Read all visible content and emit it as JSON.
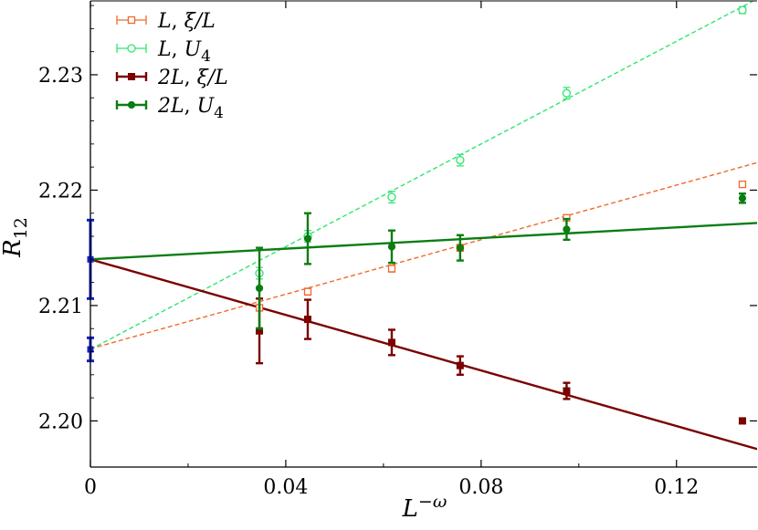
{
  "chart_data": {
    "type": "scatter",
    "title": "",
    "xlabel": {
      "base": "L",
      "sup": "−ω"
    },
    "ylabel": {
      "base": "R",
      "sub": "12"
    },
    "xlim": [
      0,
      0.1365
    ],
    "ylim": [
      2.196,
      2.2364
    ],
    "xticks": [
      0,
      0.04,
      0.08,
      0.12
    ],
    "xtick_labels": [
      "0",
      "0.04",
      "0.08",
      "0.12"
    ],
    "yticks": [
      2.2,
      2.21,
      2.22,
      2.23
    ],
    "ytick_labels": [
      "2.20",
      "2.21",
      "2.22",
      "2.23"
    ],
    "legend_position": "top-left",
    "series": [
      {
        "id": "L_xi",
        "legend_label": {
          "a": "L",
          "b": ", ξ/L",
          "sub": ""
        },
        "color": "#f06a2a",
        "marker": "square-open",
        "line_style": "dashed",
        "fit": {
          "intercept": 2.20625,
          "slope": 0.1182
        },
        "points": [
          {
            "x": 0.0346,
            "y": 2.2098,
            "err": 0.0002
          },
          {
            "x": 0.0445,
            "y": 2.2112,
            "err": 0.0003
          },
          {
            "x": 0.0617,
            "y": 2.2132,
            "err": 0.0003
          },
          {
            "x": 0.0757,
            "y": 2.215,
            "err": 0.0003
          },
          {
            "x": 0.0975,
            "y": 2.2176,
            "err": 0.0002
          },
          {
            "x": 0.1335,
            "y": 2.2205,
            "err": 0.0002
          }
        ]
      },
      {
        "id": "L_U4",
        "legend_label": {
          "a": "L",
          "b": ", U",
          "sub": "4"
        },
        "color": "#2ee66e",
        "marker": "circle-open",
        "line_style": "dashed",
        "fit": {
          "intercept": 2.2062,
          "slope": 0.2225
        },
        "points": [
          {
            "x": 0.0346,
            "y": 2.2128,
            "err": 0.0005
          },
          {
            "x": 0.0445,
            "y": 2.216,
            "err": 0.0005
          },
          {
            "x": 0.0617,
            "y": 2.2194,
            "err": 0.0005
          },
          {
            "x": 0.0757,
            "y": 2.2226,
            "err": 0.0005
          },
          {
            "x": 0.0975,
            "y": 2.2284,
            "err": 0.0005
          },
          {
            "x": 0.1335,
            "y": 2.2356,
            "err": 0.0003
          }
        ]
      },
      {
        "id": "2L_xi",
        "legend_label": {
          "a": "2L",
          "b": ", ξ/L",
          "sub": ""
        },
        "color": "#7b0000",
        "marker": "square-filled",
        "line_style": "solid",
        "fit": {
          "intercept": 2.214,
          "slope": -0.1204
        },
        "points": [
          {
            "x": 0.0346,
            "y": 2.2078,
            "err": 0.0028
          },
          {
            "x": 0.0445,
            "y": 2.2088,
            "err": 0.0017
          },
          {
            "x": 0.0617,
            "y": 2.2068,
            "err": 0.0011
          },
          {
            "x": 0.0757,
            "y": 2.2048,
            "err": 0.0008
          },
          {
            "x": 0.0975,
            "y": 2.2026,
            "err": 0.0007
          },
          {
            "x": 0.1335,
            "y": 2.2,
            "err": 0.0002
          }
        ]
      },
      {
        "id": "2L_U4",
        "legend_label": {
          "a": "2L",
          "b": ", U",
          "sub": "4"
        },
        "color": "#0b7d12",
        "marker": "circle-filled",
        "line_style": "solid",
        "fit": {
          "intercept": 2.214,
          "slope": 0.0231
        },
        "points": [
          {
            "x": 0.0346,
            "y": 2.2115,
            "err": 0.0035
          },
          {
            "x": 0.0445,
            "y": 2.2158,
            "err": 0.0022
          },
          {
            "x": 0.0617,
            "y": 2.2151,
            "err": 0.0014
          },
          {
            "x": 0.0757,
            "y": 2.215,
            "err": 0.0011
          },
          {
            "x": 0.0975,
            "y": 2.2166,
            "err": 0.0009
          },
          {
            "x": 0.1335,
            "y": 2.2193,
            "err": 0.0004
          }
        ]
      }
    ],
    "extrapolated": {
      "color": "#1020c8",
      "points": [
        {
          "x": 0,
          "y": 2.214,
          "err": 0.0034
        },
        {
          "x": 0,
          "y": 2.2062,
          "err": 0.001
        }
      ]
    }
  }
}
